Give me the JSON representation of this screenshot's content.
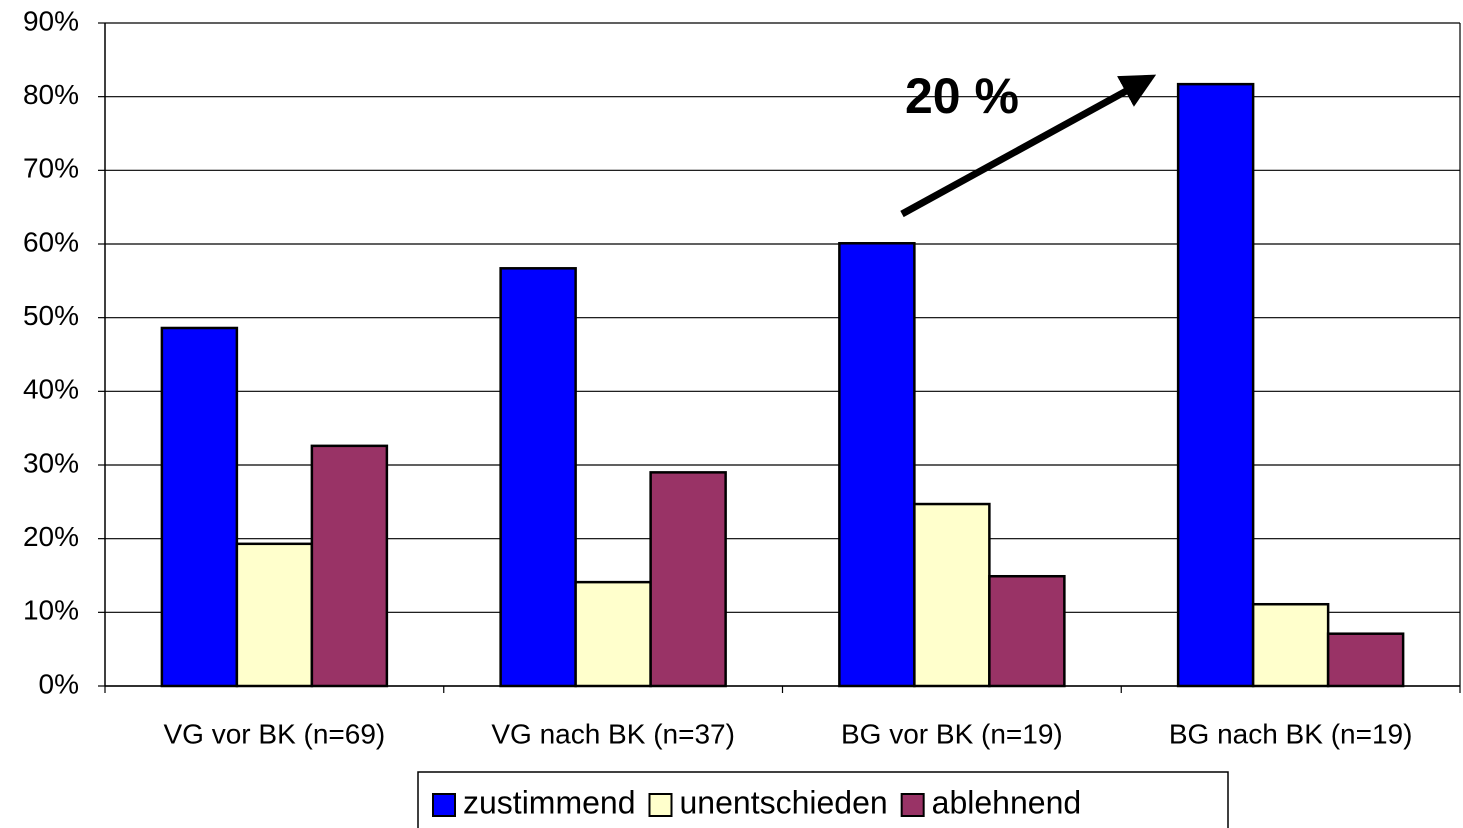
{
  "chart_data": {
    "type": "bar",
    "categories": [
      "VG vor BK (n=69)",
      "VG nach BK (n=37)",
      "BG vor BK (n=19)",
      "BG nach BK (n=19)"
    ],
    "series": [
      {
        "name": "zustimmend",
        "color": "#0000ff",
        "values": [
          48.6,
          56.7,
          60.1,
          81.7
        ]
      },
      {
        "name": "unentschieden",
        "color": "#ffffcc",
        "values": [
          19.3,
          14.1,
          24.7,
          11.1
        ]
      },
      {
        "name": "ablehnend",
        "color": "#993366",
        "values": [
          32.6,
          29.0,
          14.9,
          7.1
        ]
      }
    ],
    "ylim": [
      0,
      90
    ],
    "yticks": [
      {
        "value": 0,
        "label": "0%"
      },
      {
        "value": 10,
        "label": "10%"
      },
      {
        "value": 20,
        "label": "20%"
      },
      {
        "value": 30,
        "label": "30%"
      },
      {
        "value": 40,
        "label": "40%"
      },
      {
        "value": 50,
        "label": "50%"
      },
      {
        "value": 60,
        "label": "60%"
      },
      {
        "value": 70,
        "label": "70%"
      },
      {
        "value": 80,
        "label": "80%"
      },
      {
        "value": 90,
        "label": "90%"
      }
    ],
    "grid": true,
    "annotation": "20 %"
  }
}
